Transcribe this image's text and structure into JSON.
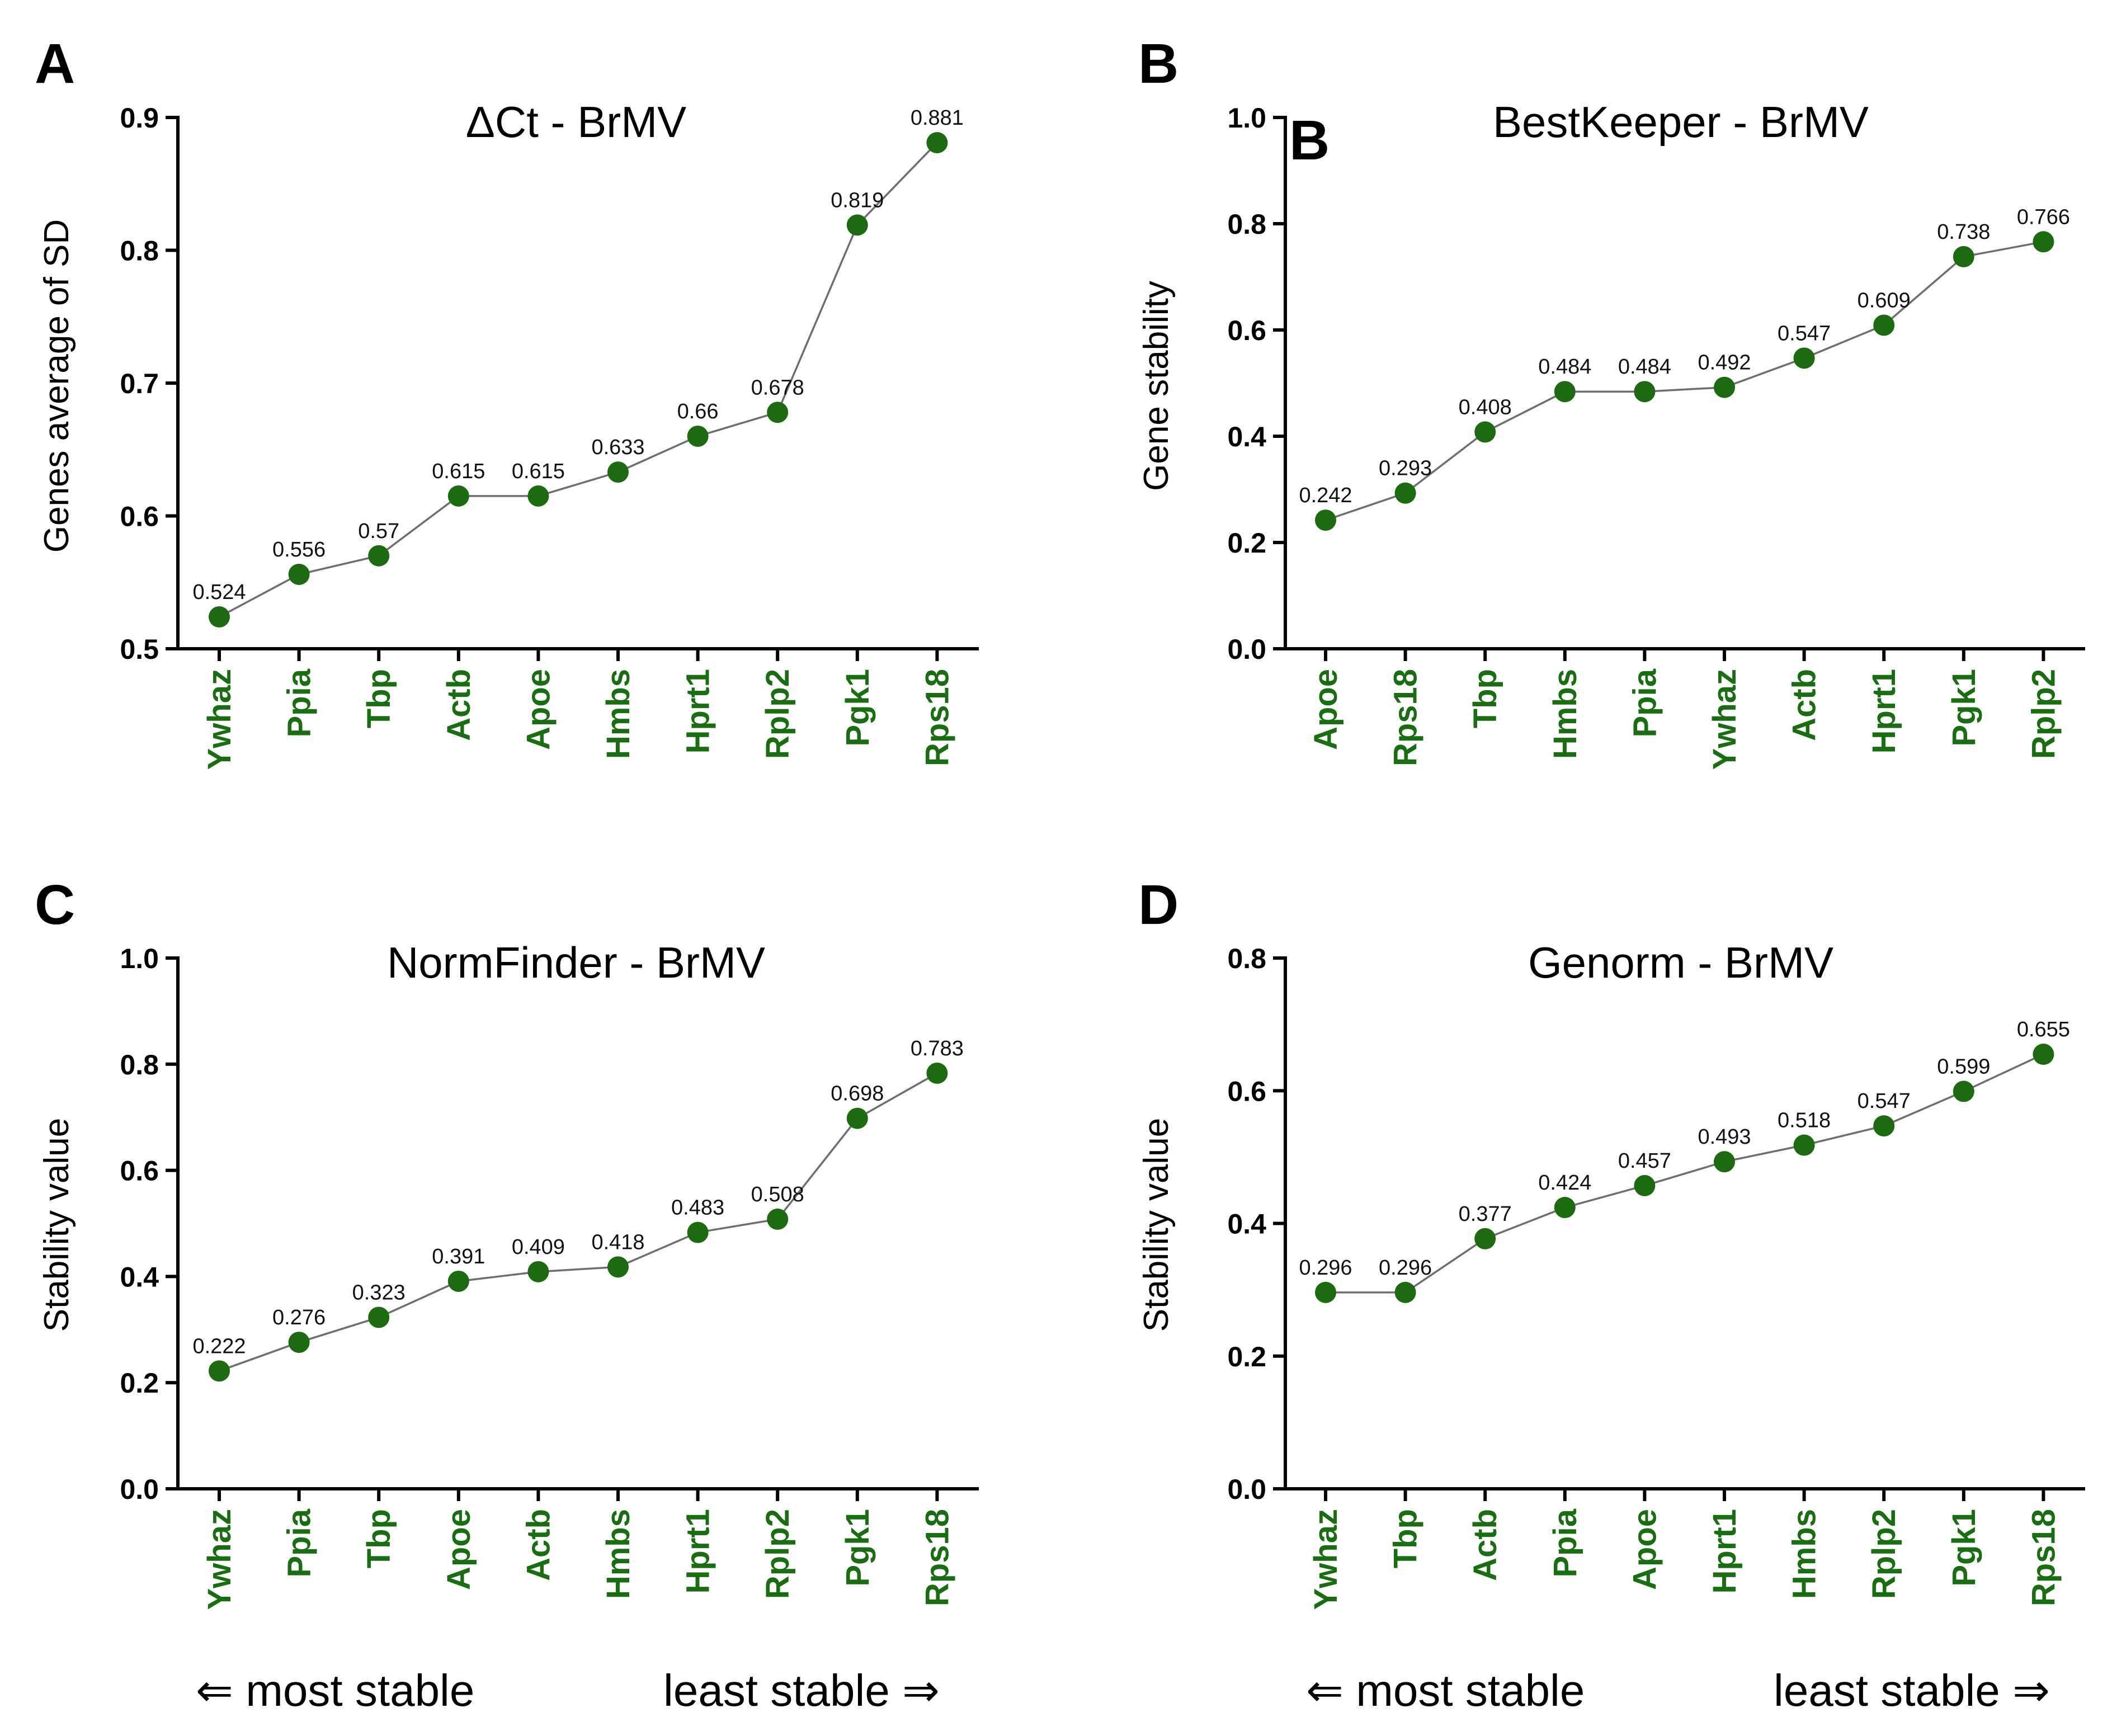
{
  "chart_data": [
    {
      "panel": "A",
      "type": "line",
      "title": "ΔCt - BrMV",
      "xlabel": "",
      "ylabel": "Genes average of SD",
      "ylim": [
        0.5,
        0.9
      ],
      "yticks": [
        0.5,
        0.6,
        0.7,
        0.8,
        0.9
      ],
      "ytick_labels": [
        "0.5",
        "0.6",
        "0.7",
        "0.8",
        "0.9"
      ],
      "categories": [
        "Ywhaz",
        "Ppia",
        "Tbp",
        "Actb",
        "Apoe",
        "Hmbs",
        "Hprt1",
        "Rplp2",
        "Pgk1",
        "Rps18"
      ],
      "values": [
        0.524,
        0.556,
        0.57,
        0.615,
        0.615,
        0.633,
        0.66,
        0.678,
        0.819,
        0.881
      ],
      "value_labels": [
        "0.524",
        "0.556",
        "0.57",
        "0.615",
        "0.615",
        "0.633",
        "0.66",
        "0.678",
        "0.819",
        "0.881"
      ]
    },
    {
      "panel": "B",
      "type": "line",
      "title": "BestKeeper - BrMV",
      "inner_letter": "B",
      "xlabel": "",
      "ylabel": "Gene stability",
      "ylim": [
        0.0,
        1.0
      ],
      "yticks": [
        0.0,
        0.2,
        0.4,
        0.6,
        0.8,
        1.0
      ],
      "ytick_labels": [
        "0.0",
        "0.2",
        "0.4",
        "0.6",
        "0.8",
        "1.0"
      ],
      "categories": [
        "Apoe",
        "Rps18",
        "Tbp",
        "Hmbs",
        "Ppia",
        "Ywhaz",
        "Actb",
        "Hprt1",
        "Pgk1",
        "Rplp2"
      ],
      "values": [
        0.242,
        0.293,
        0.408,
        0.484,
        0.484,
        0.492,
        0.547,
        0.609,
        0.738,
        0.766
      ],
      "value_labels": [
        "0.242",
        "0.293",
        "0.408",
        "0.484",
        "0.484",
        "0.492",
        "0.547",
        "0.609",
        "0.738",
        "0.766"
      ]
    },
    {
      "panel": "C",
      "type": "line",
      "title": "NormFinder - BrMV",
      "xlabel": "",
      "ylabel": "Stability value",
      "ylim": [
        0.0,
        1.0
      ],
      "yticks": [
        0.0,
        0.2,
        0.4,
        0.6,
        0.8,
        1.0
      ],
      "ytick_labels": [
        "0.0",
        "0.2",
        "0.4",
        "0.6",
        "0.8",
        "1.0"
      ],
      "categories": [
        "Ywhaz",
        "Ppia",
        "Tbp",
        "Apoe",
        "Actb",
        "Hmbs",
        "Hprt1",
        "Rplp2",
        "Pgk1",
        "Rps18"
      ],
      "values": [
        0.222,
        0.276,
        0.323,
        0.391,
        0.409,
        0.418,
        0.483,
        0.508,
        0.698,
        0.783
      ],
      "value_labels": [
        "0.222",
        "0.276",
        "0.323",
        "0.391",
        "0.409",
        "0.418",
        "0.483",
        "0.508",
        "0.698",
        "0.783"
      ]
    },
    {
      "panel": "D",
      "type": "line",
      "title": "Genorm - BrMV",
      "xlabel": "",
      "ylabel": "Stability value",
      "ylim": [
        0.0,
        0.8
      ],
      "yticks": [
        0.0,
        0.2,
        0.4,
        0.6,
        0.8
      ],
      "ytick_labels": [
        "0.0",
        "0.2",
        "0.4",
        "0.6",
        "0.8"
      ],
      "categories": [
        "Ywhaz",
        "Tbp",
        "Actb",
        "Ppia",
        "Apoe",
        "Hprt1",
        "Hmbs",
        "Rplp2",
        "Pgk1",
        "Rps18"
      ],
      "values": [
        0.296,
        0.296,
        0.377,
        0.424,
        0.457,
        0.493,
        0.518,
        0.547,
        0.599,
        0.655
      ],
      "value_labels": [
        "0.296",
        "0.296",
        "0.377",
        "0.424",
        "0.457",
        "0.493",
        "0.518",
        "0.547",
        "0.599",
        "0.655"
      ]
    }
  ],
  "footer": {
    "left": "⇐ most stable",
    "right": "least stable ⇒"
  },
  "colors": {
    "point": "#1c6b10",
    "tick_label": "#1a6e12",
    "line": "#6e6e6e"
  }
}
